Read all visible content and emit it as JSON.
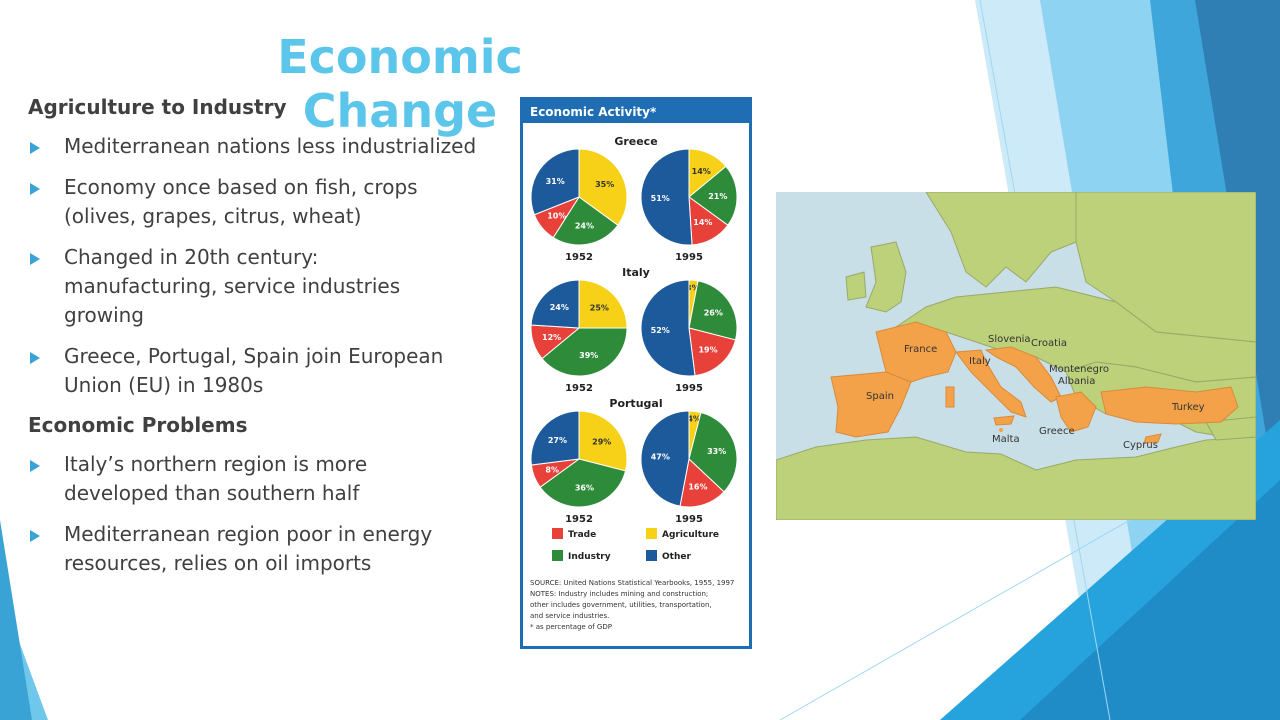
{
  "slide": {
    "title": "Economic Change",
    "sections": [
      {
        "heading": "Agriculture to Industry",
        "bullets": [
          "Mediterranean nations less industrialized",
          "Economy once based on fish, crops (olives, grapes, citrus, wheat)",
          "Changed in 20th century: manufacturing, service industries growing",
          "Greece, Portugal, Spain join European Union (EU) in 1980s"
        ]
      },
      {
        "heading": "Economic Problems",
        "bullets": [
          "Italy’s northern region is more developed than southern half",
          "Mediterranean region poor in energy resources, relies on oil imports"
        ]
      }
    ]
  },
  "chart_data": {
    "type": "pie",
    "title": "Economic Activity*",
    "categories": [
      "Agriculture",
      "Industry",
      "Trade",
      "Other"
    ],
    "colors": {
      "Agriculture": "#f7d117",
      "Industry": "#2e8b3a",
      "Trade": "#e8413a",
      "Other": "#1c5a9c"
    },
    "countries": [
      {
        "name": "Greece",
        "pies": [
          {
            "year": "1952",
            "values": {
              "Agriculture": 35,
              "Industry": 24,
              "Trade": 10,
              "Other": 31
            }
          },
          {
            "year": "1995",
            "values": {
              "Agriculture": 14,
              "Industry": 21,
              "Trade": 14,
              "Other": 51
            }
          }
        ]
      },
      {
        "name": "Italy",
        "pies": [
          {
            "year": "1952",
            "values": {
              "Agriculture": 25,
              "Industry": 39,
              "Trade": 12,
              "Other": 24
            }
          },
          {
            "year": "1995",
            "values": {
              "Agriculture": 3,
              "Industry": 26,
              "Trade": 19,
              "Other": 52
            }
          }
        ]
      },
      {
        "name": "Portugal",
        "pies": [
          {
            "year": "1952",
            "values": {
              "Agriculture": 29,
              "Industry": 36,
              "Trade": 8,
              "Other": 27
            }
          },
          {
            "year": "1995",
            "values": {
              "Agriculture": 4,
              "Industry": 33,
              "Trade": 16,
              "Other": 47
            }
          }
        ]
      }
    ],
    "legend": [
      {
        "label": "Trade",
        "key": "Trade"
      },
      {
        "label": "Agriculture",
        "key": "Agriculture"
      },
      {
        "label": "Industry",
        "key": "Industry"
      },
      {
        "label": "Other",
        "key": "Other"
      }
    ],
    "notes": [
      "SOURCE: United Nations Statistical Yearbooks, 1955, 1997",
      "NOTES: Industry includes mining and construction;",
      "other includes government, utilities, transportation,",
      "and service industries.",
      "* as percentage of GDP"
    ]
  },
  "map": {
    "colors": {
      "sea": "#c9dfe8",
      "land": "#bcd17a",
      "highlight": "#f4a24a",
      "border": "#9aa868"
    },
    "labels": [
      "France",
      "Slovenia",
      "Croatia",
      "Italy",
      "Montenegro",
      "Albania",
      "Spain",
      "Turkey",
      "Greece",
      "Malta",
      "Cyprus"
    ]
  }
}
